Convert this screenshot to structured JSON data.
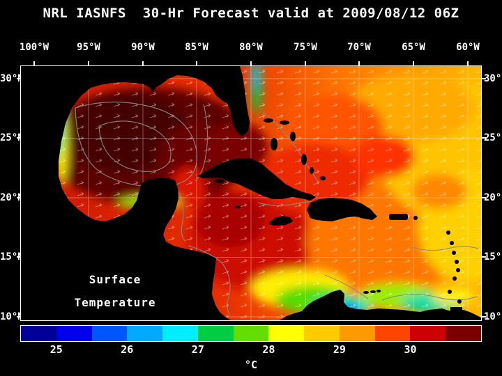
{
  "header": {
    "title": "NRL IASNFS  30-Hr Forecast valid at 2009/08/12 06Z"
  },
  "axes": {
    "lon_labels": [
      "100°W",
      "95°W",
      "90°W",
      "85°W",
      "80°W",
      "75°W",
      "70°W",
      "65°W",
      "60°W"
    ],
    "lat_labels": [
      "30°N",
      "25°N",
      "20°N",
      "15°N",
      "10°N"
    ]
  },
  "map": {
    "annotation": {
      "line1": "Surface",
      "line2": "Temperature"
    },
    "land_color": "#000000",
    "contour_color": "#8a8a8a",
    "vector_color": "#ffffff"
  },
  "colorbar": {
    "unit_label": "°C",
    "tick_labels": [
      "25",
      "26",
      "27",
      "28",
      "29",
      "30"
    ],
    "colors": [
      "#000099",
      "#0000ee",
      "#0055ff",
      "#00aaff",
      "#00eeff",
      "#00cc44",
      "#66dd00",
      "#ffff00",
      "#ffcc00",
      "#ff9900",
      "#ff4400",
      "#cc0000",
      "#7a0000"
    ]
  },
  "chart_data": {
    "type": "heatmap",
    "title": "NRL IASNFS 30-Hr Forecast valid at 2009/08/12 06Z",
    "variable": "Surface Temperature",
    "unit": "°C",
    "colorbar_ticks": [
      25,
      26,
      27,
      28,
      29,
      30
    ],
    "approx_range": [
      24.5,
      31
    ],
    "region": {
      "lon_extent": [
        "100°W",
        "60°W"
      ],
      "lat_extent": [
        "10°N",
        "30°N"
      ]
    },
    "notes_visible_features": "Gulf of Mexico dark red (≈30-31°C), eastern Atlantic/Caribbean orange-yellow (≈28-29°C), cool green-cyan upwelling swirls in southern Caribbean (≈26-27°C), land masked black, gray depth contours, white current vectors"
  }
}
